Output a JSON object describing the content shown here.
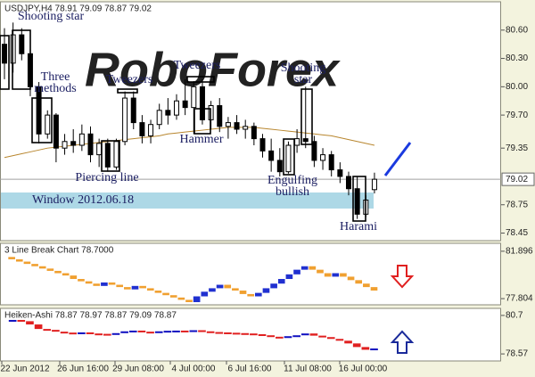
{
  "chart_data": [
    {
      "type": "candlestick",
      "title": "USDJPY,H4 78.91 79.09 78.87 79.02",
      "open": [
        80.45,
        80.25,
        80.55,
        80.35,
        80.0,
        79.5,
        79.7,
        79.35,
        79.42,
        79.38,
        79.5,
        79.28,
        79.4,
        79.15,
        79.42,
        79.88,
        79.62,
        79.48,
        79.6,
        79.75,
        79.7,
        79.85,
        79.78,
        80.0,
        79.65,
        79.8,
        79.58,
        79.62,
        79.55,
        79.58,
        79.45,
        79.32,
        79.22,
        79.1,
        79.38,
        79.45,
        79.42,
        79.22,
        79.28,
        79.12,
        79.05,
        78.92,
        78.65,
        78.91
      ],
      "high": [
        80.62,
        80.68,
        80.62,
        80.4,
        80.05,
        79.75,
        79.72,
        79.5,
        79.55,
        79.6,
        79.58,
        79.45,
        79.45,
        79.45,
        79.95,
        79.95,
        79.7,
        79.65,
        79.82,
        79.88,
        79.92,
        80.08,
        80.06,
        80.08,
        79.85,
        79.88,
        79.68,
        79.7,
        79.65,
        79.62,
        79.5,
        79.45,
        79.35,
        79.42,
        79.55,
        80.0,
        79.48,
        79.35,
        79.32,
        79.2,
        79.1,
        79.05,
        78.85,
        79.09
      ],
      "low": [
        80.08,
        80.15,
        80.28,
        79.9,
        79.4,
        79.45,
        79.2,
        79.28,
        79.3,
        79.32,
        79.2,
        79.15,
        79.1,
        79.12,
        79.38,
        79.55,
        79.4,
        79.4,
        79.55,
        79.6,
        79.65,
        79.7,
        79.5,
        79.6,
        79.55,
        79.52,
        79.45,
        79.5,
        79.45,
        79.38,
        79.25,
        79.1,
        79.05,
        79.08,
        79.3,
        79.35,
        79.15,
        79.12,
        79.05,
        78.98,
        78.85,
        78.6,
        78.62,
        78.87
      ],
      "close": [
        80.25,
        80.55,
        80.35,
        80.0,
        79.5,
        79.7,
        79.35,
        79.42,
        79.38,
        79.5,
        79.28,
        79.4,
        79.15,
        79.42,
        79.88,
        79.62,
        79.48,
        79.6,
        79.75,
        79.7,
        79.85,
        79.78,
        80.0,
        79.65,
        79.8,
        79.58,
        79.62,
        79.55,
        79.58,
        79.45,
        79.32,
        79.22,
        79.1,
        79.38,
        79.45,
        79.42,
        79.22,
        79.28,
        79.12,
        79.05,
        78.92,
        78.65,
        78.8,
        79.02
      ],
      "up_color": "#ffffff",
      "down_color": "#000000",
      "ylim": [
        78.37,
        80.9
      ],
      "yticks": [
        {
          "value": 80.6,
          "label": "80.60"
        },
        {
          "value": 80.3,
          "label": "80.30"
        },
        {
          "value": 80.0,
          "label": "80.00"
        },
        {
          "value": 79.7,
          "label": "79.70"
        },
        79.35,
        78.75,
        78.45
      ],
      "last_price": {
        "value": 79.02,
        "label": "79.02"
      },
      "moving_average": {
        "color": "#b8862e",
        "values": [
          79.25,
          79.27,
          79.29,
          79.31,
          79.33,
          79.35,
          79.36,
          79.37,
          79.38,
          79.39,
          79.4,
          79.41,
          79.42,
          79.43,
          79.44,
          79.45,
          79.46,
          79.47,
          79.48,
          79.5,
          79.51,
          79.52,
          79.53,
          79.54,
          79.55,
          79.56,
          79.57,
          79.57,
          79.57,
          79.57,
          79.56,
          79.55,
          79.54,
          79.53,
          79.52,
          79.51,
          79.5,
          79.49,
          79.48,
          79.46,
          79.44,
          79.42,
          79.4,
          79.38
        ]
      },
      "window": {
        "label": "Window 2012.06.18",
        "range": [
          78.71,
          78.88
        ],
        "color": "#add8e6"
      },
      "annotations": [
        "Shooting star",
        "Three methods",
        "Tweezers",
        "Tweezers",
        "Hammer",
        "Piercing line",
        "Shooting star",
        "Engulfing bullish",
        "Harami"
      ],
      "watermark": "RoboForex"
    },
    {
      "type": "linebreak",
      "title": "3 Line Break Chart 78.7000",
      "values": [
        81.4,
        81.2,
        81.0,
        80.8,
        80.6,
        80.4,
        80.2,
        80.0,
        79.8,
        79.5,
        79.3,
        79.1,
        78.9,
        79.2,
        79.0,
        78.8,
        78.6,
        78.9,
        78.7,
        78.5,
        78.3,
        78.1,
        77.9,
        77.7,
        77.5,
        78.0,
        78.4,
        78.7,
        79.0,
        78.7,
        78.5,
        78.2,
        78.0,
        78.3,
        78.7,
        79.1,
        79.5,
        79.9,
        80.3,
        80.6,
        80.3,
        80.0,
        79.7,
        80.0,
        79.7,
        79.4,
        79.1,
        78.8,
        78.5
      ],
      "up_color": "#2030d0",
      "down_color": "#f0a030",
      "ylim": [
        77.27,
        82.58
      ],
      "yticks": [
        81.896,
        77.804
      ]
    },
    {
      "type": "heikin-ashi",
      "title": "Heiken-Ashi 78.87 78.97 78.87 79.09 78.87",
      "values": [
        80.4,
        80.45,
        80.38,
        80.2,
        79.95,
        79.9,
        79.8,
        79.75,
        79.72,
        79.76,
        79.7,
        79.68,
        79.66,
        79.72,
        79.82,
        79.86,
        79.8,
        79.78,
        79.82,
        79.85,
        79.86,
        79.84,
        79.88,
        79.82,
        79.78,
        79.76,
        79.74,
        79.72,
        79.7,
        79.66,
        79.6,
        79.52,
        79.45,
        79.55,
        79.6,
        79.7,
        79.58,
        79.5,
        79.4,
        79.3,
        79.15,
        78.95,
        78.8,
        78.87
      ],
      "up_color": "#1010c0",
      "down_color": "#e02020",
      "ylim": [
        78.18,
        81.09
      ],
      "yticks": [
        80.7,
        78.57
      ]
    }
  ],
  "x_axis": {
    "labels": [
      "22 Jun 2012",
      "26 Jun 16:00",
      "29 Jun 08:00",
      "4 Jul 00:00",
      "6 Jul 16:00",
      "11 Jul 08:00",
      "16 Jul 00:00"
    ]
  }
}
